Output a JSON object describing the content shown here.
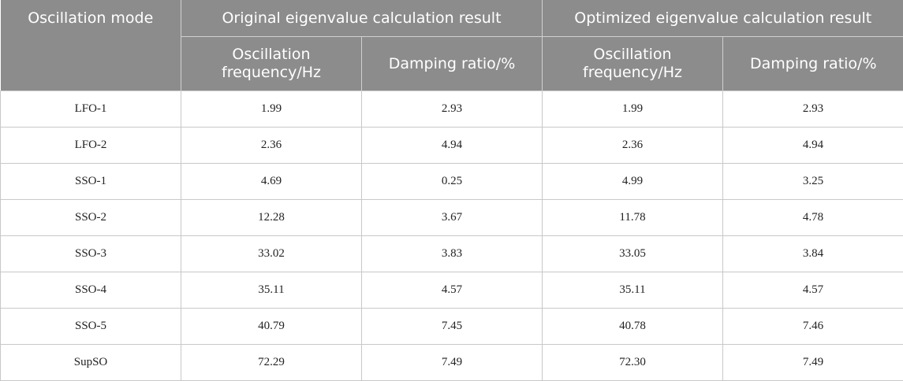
{
  "header": {
    "mode_label": "Oscillation mode",
    "original_group": "Original eigenvalue calculation result",
    "optimized_group": "Optimized eigenvalue calculation result",
    "freq_label": "Oscillation frequency/Hz",
    "damping_label": "Damping ratio/%"
  },
  "rows": [
    {
      "mode": "LFO-1",
      "orig_freq": "1.99",
      "orig_damp": "2.93",
      "opt_freq": "1.99",
      "opt_damp": "2.93"
    },
    {
      "mode": "LFO-2",
      "orig_freq": "2.36",
      "orig_damp": "4.94",
      "opt_freq": "2.36",
      "opt_damp": "4.94"
    },
    {
      "mode": "SSO-1",
      "orig_freq": "4.69",
      "orig_damp": "0.25",
      "opt_freq": "4.99",
      "opt_damp": "3.25"
    },
    {
      "mode": "SSO-2",
      "orig_freq": "12.28",
      "orig_damp": "3.67",
      "opt_freq": "11.78",
      "opt_damp": "4.78"
    },
    {
      "mode": "SSO-3",
      "orig_freq": "33.02",
      "orig_damp": "3.83",
      "opt_freq": "33.05",
      "opt_damp": "3.84"
    },
    {
      "mode": "SSO-4",
      "orig_freq": "35.11",
      "orig_damp": "4.57",
      "opt_freq": "35.11",
      "opt_damp": "4.57"
    },
    {
      "mode": "SSO-5",
      "orig_freq": "40.79",
      "orig_damp": "7.45",
      "opt_freq": "40.78",
      "opt_damp": "7.46"
    },
    {
      "mode": "SupSO",
      "orig_freq": "72.29",
      "orig_damp": "7.49",
      "opt_freq": "72.30",
      "opt_damp": "7.49"
    }
  ]
}
